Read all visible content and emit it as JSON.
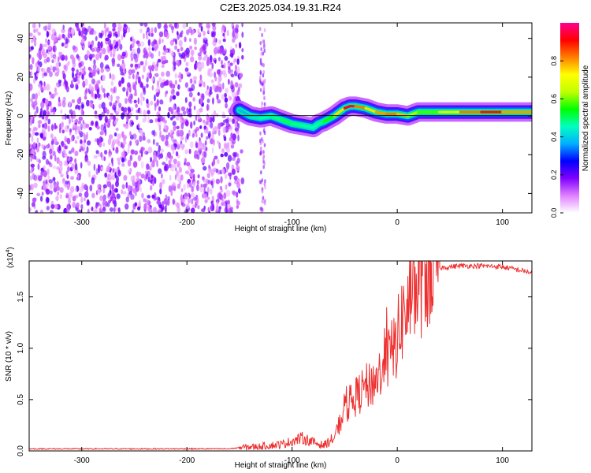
{
  "figure_title": "C2E3.2025.034.19.31.R24",
  "chart_data": [
    {
      "type": "heatmap",
      "title": "C2E3.2025.034.19.31.R24",
      "xlabel": "Height of straight line (km)",
      "ylabel": "Frequency (Hz)",
      "xlim": [
        -350,
        128
      ],
      "ylim": [
        -50,
        48
      ],
      "x_ticks": [
        -300,
        -200,
        -100,
        0,
        100
      ],
      "y_ticks": [
        -40,
        -20,
        0,
        20,
        40
      ],
      "colorbar": {
        "label": "Normalized spectral amplitude",
        "range": [
          0,
          1
        ],
        "ticks": [
          0.0,
          0.2,
          0.4,
          0.6,
          0.8
        ],
        "colors": [
          "#ffffff",
          "#e080ff",
          "#8000ff",
          "#0000ff",
          "#00b0ff",
          "#00ffc0",
          "#00ff00",
          "#c0ff00",
          "#ffff00",
          "#ff8000",
          "#ff0000",
          "#ff0090"
        ]
      },
      "noise_region": {
        "x": [
          -350,
          -150
        ],
        "y": [
          -50,
          48
        ],
        "typical_amplitude": 0.15
      },
      "ridge": {
        "x": [
          -150,
          -140,
          -130,
          -120,
          -110,
          -100,
          -90,
          -80,
          -75,
          -70,
          -60,
          -50,
          -45,
          -40,
          -30,
          -20,
          -10,
          0,
          10,
          20,
          40,
          60,
          80,
          100,
          128
        ],
        "frequency_hz": [
          3,
          0,
          -1,
          0,
          -2,
          -4,
          -5,
          -6,
          -4,
          -3,
          0,
          4,
          5,
          5,
          4,
          2,
          1,
          1,
          0,
          2,
          2,
          2,
          2,
          2,
          2
        ],
        "amplitude": [
          0.35,
          0.4,
          0.45,
          0.45,
          0.5,
          0.5,
          0.45,
          0.45,
          0.45,
          0.5,
          0.6,
          0.9,
          0.95,
          0.95,
          0.7,
          0.8,
          0.8,
          0.85,
          0.7,
          0.55,
          0.6,
          0.75,
          0.9,
          0.9,
          0.7
        ]
      }
    },
    {
      "type": "line",
      "xlabel": "Height of straight line (km)",
      "ylabel": "SNR (10 * v/v)",
      "multiplier_label": "(x10",
      "multiplier_exponent": "4",
      "multiplier_close": ")",
      "xlim": [
        -350,
        128
      ],
      "ylim": [
        0,
        1.85
      ],
      "x_ticks": [
        -300,
        -200,
        -100,
        0,
        100
      ],
      "y_ticks": [
        "0.0",
        "0.5",
        "1.0",
        "1.5"
      ],
      "color": "#ee3030",
      "series": [
        {
          "x": [
            -350,
            -300,
            -250,
            -200,
            -160,
            -150,
            -130,
            -110,
            -100,
            -90,
            -80,
            -70,
            -60,
            -55,
            -50,
            -45,
            -40,
            -35,
            -30,
            -25,
            -20,
            -15,
            -10,
            -5,
            0,
            5,
            10,
            15,
            20,
            25,
            30,
            40,
            60,
            80,
            100,
            110,
            120,
            128
          ],
          "y": [
            0.02,
            0.02,
            0.02,
            0.02,
            0.02,
            0.03,
            0.04,
            0.06,
            0.09,
            0.12,
            0.08,
            0.05,
            0.12,
            0.25,
            0.38,
            0.45,
            0.5,
            0.55,
            0.6,
            0.62,
            0.68,
            0.75,
            0.85,
            0.92,
            1.05,
            1.25,
            1.35,
            1.45,
            1.55,
            1.65,
            1.72,
            1.78,
            1.8,
            1.8,
            1.79,
            1.77,
            1.75,
            1.73
          ]
        }
      ]
    }
  ]
}
